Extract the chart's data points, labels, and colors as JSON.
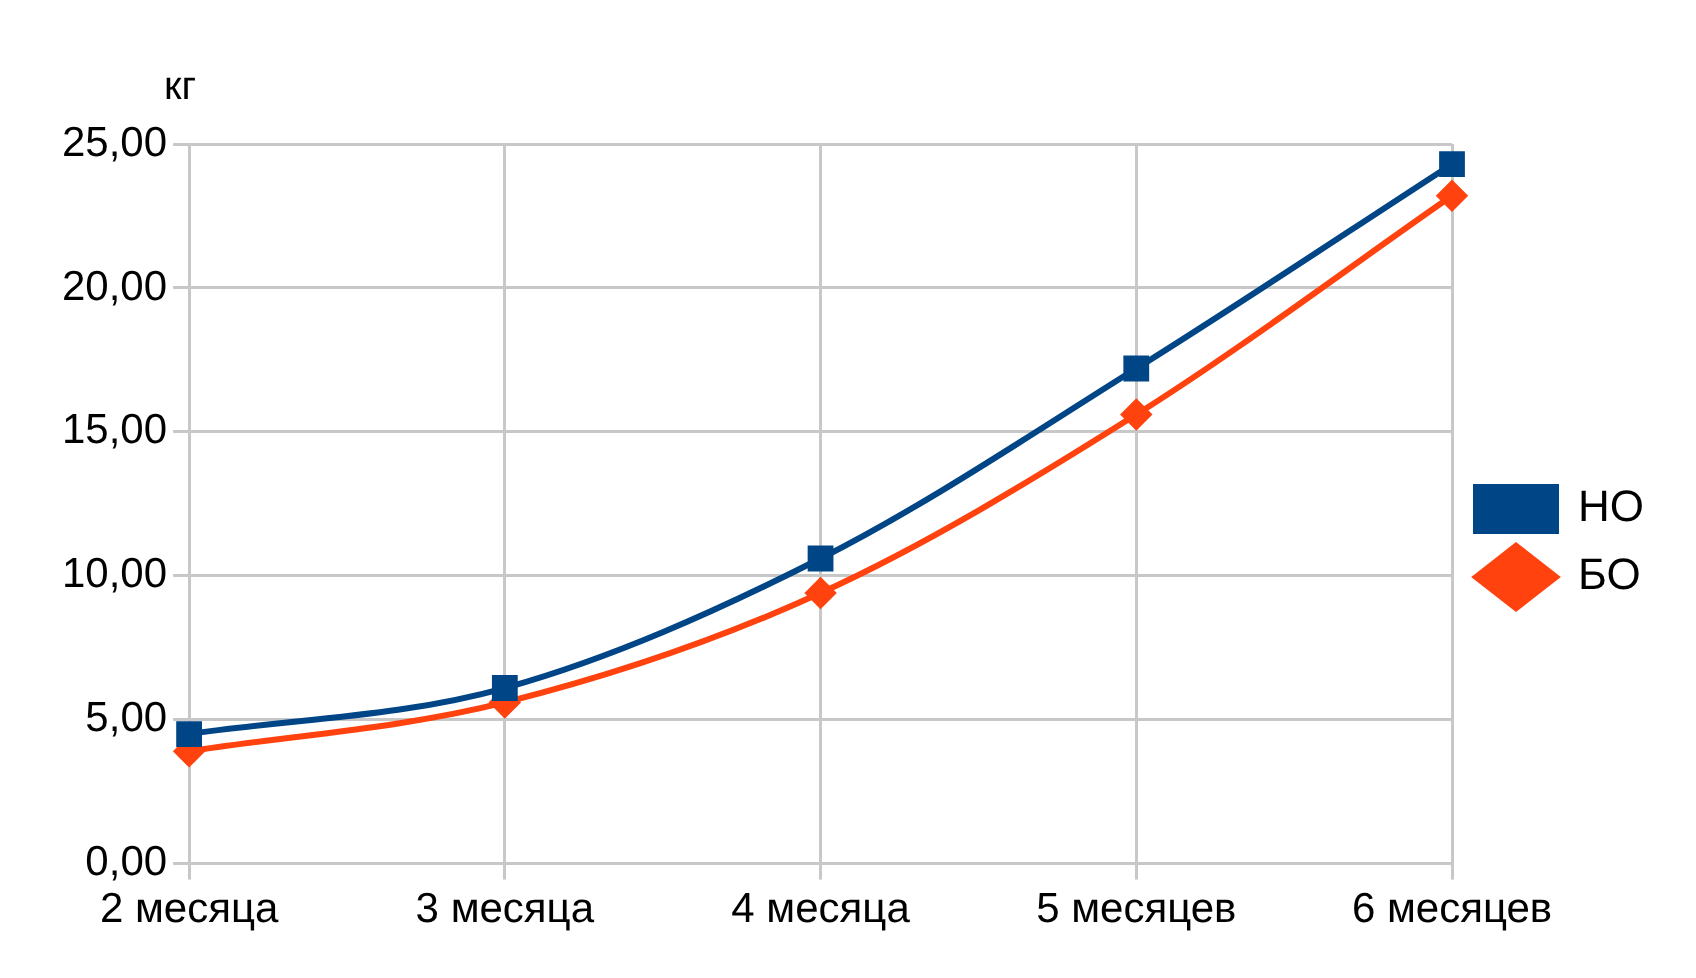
{
  "chart_data": {
    "type": "line",
    "ylabel": "кг",
    "categories": [
      "2 месяца",
      "3 месяца",
      "4 месяца",
      "5 месяцев",
      "6 месяцев"
    ],
    "series": [
      {
        "name": "НО",
        "color": "#004586",
        "marker": "square",
        "values": [
          4.5,
          6.1,
          10.6,
          17.2,
          24.3
        ]
      },
      {
        "name": "БО",
        "color": "#ff420e",
        "marker": "diamond",
        "values": [
          3.9,
          5.6,
          9.4,
          15.6,
          23.2
        ]
      }
    ],
    "ylim": [
      0,
      25
    ],
    "yticks": [
      {
        "value": 0,
        "label": "0,00"
      },
      {
        "value": 5,
        "label": "5,00"
      },
      {
        "value": 10,
        "label": "10,00"
      },
      {
        "value": 15,
        "label": "15,00"
      },
      {
        "value": 20,
        "label": "20,00"
      },
      {
        "value": 25,
        "label": "25,00"
      }
    ],
    "grid": true,
    "legend": "right"
  }
}
